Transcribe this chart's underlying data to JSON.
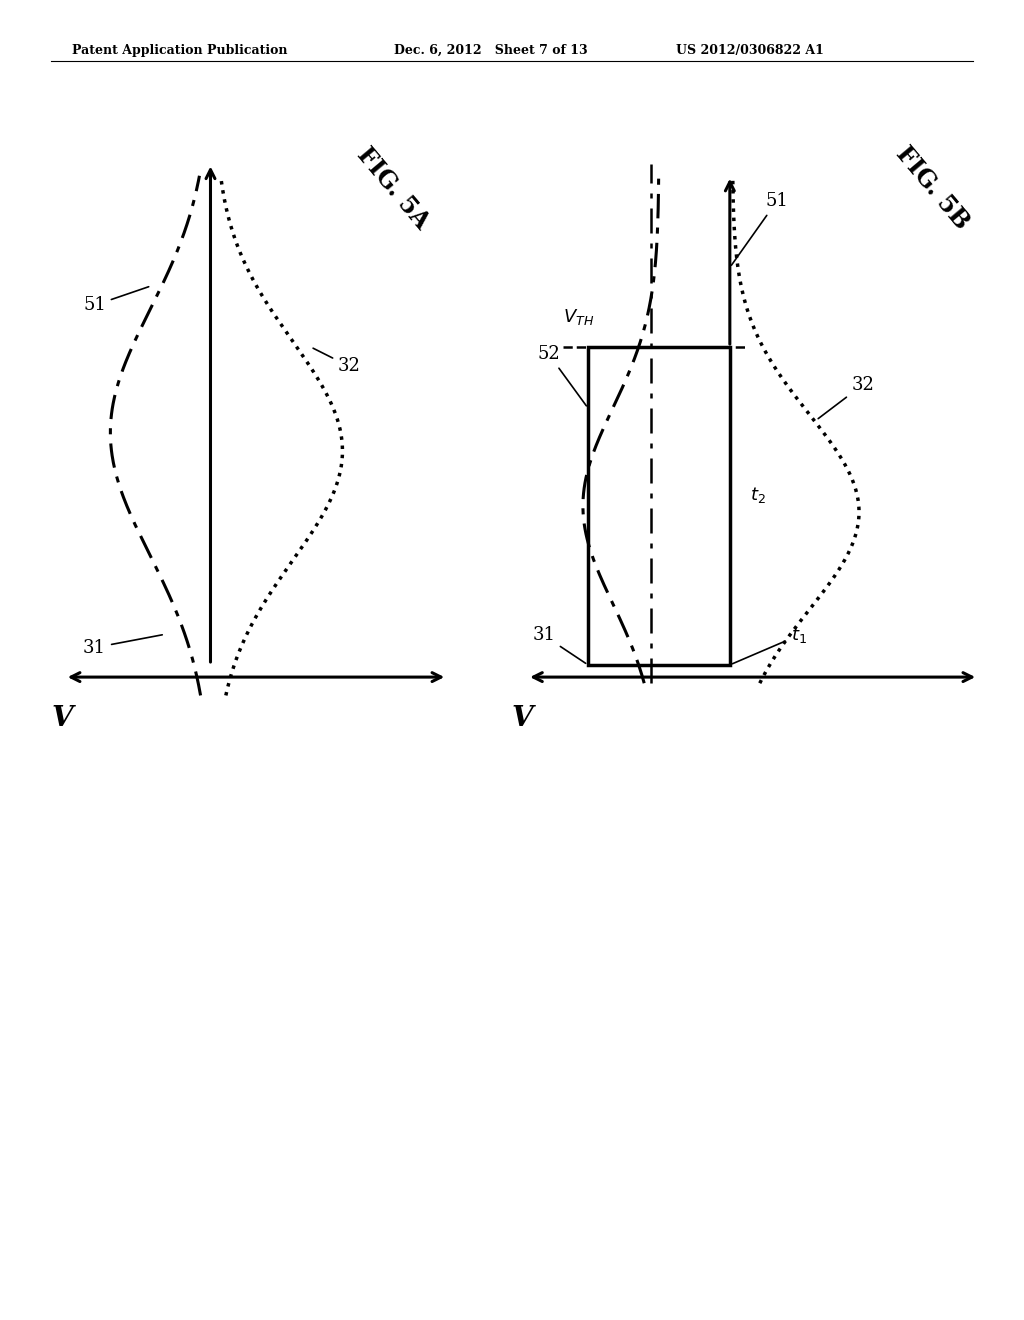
{
  "header_left": "Patent Application Publication",
  "header_mid": "Dec. 6, 2012   Sheet 7 of 13",
  "header_right": "US 2012/0306822 A1",
  "fig_a_label": "FIG. 5A",
  "fig_b_label": "FIG. 5B",
  "bg_color": "#ffffff"
}
